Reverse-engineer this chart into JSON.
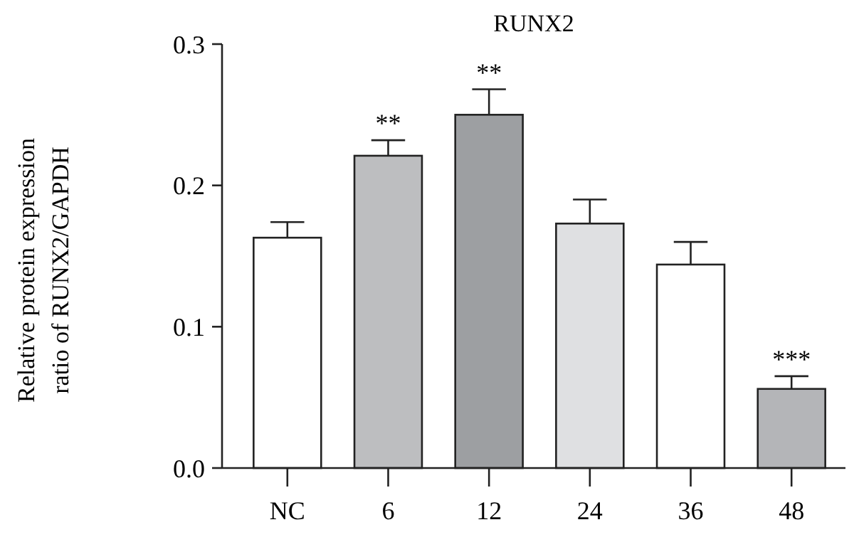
{
  "chart_data": {
    "type": "bar",
    "title": "RUNX2",
    "ylabel": "Relative protein expression\nratio of RUNX2/GAPDH",
    "categories": [
      "NC",
      "6",
      "12",
      "24",
      "36",
      "48"
    ],
    "values": [
      0.163,
      0.221,
      0.25,
      0.173,
      0.144,
      0.056
    ],
    "errors": [
      0.011,
      0.011,
      0.018,
      0.017,
      0.016,
      0.009
    ],
    "colors": [
      "#ffffff",
      "#bdbec0",
      "#9d9fa2",
      "#dfe0e2",
      "#ffffff",
      "#b4b5b8"
    ],
    "ylim": [
      0,
      0.3
    ],
    "yticks": [
      {
        "value": 0,
        "label": "0.0"
      },
      {
        "value": 0.1,
        "label": "0.1"
      },
      {
        "value": 0.2,
        "label": "0.2"
      },
      {
        "value": 0.3,
        "label": "0.3"
      }
    ],
    "annotations": [
      {
        "text": "**",
        "x": "6",
        "y": 0.232
      },
      {
        "text": "**",
        "x": "12",
        "y": 0.268
      },
      {
        "text": "***",
        "x": "48",
        "y": 0.065
      }
    ],
    "grid": false
  }
}
